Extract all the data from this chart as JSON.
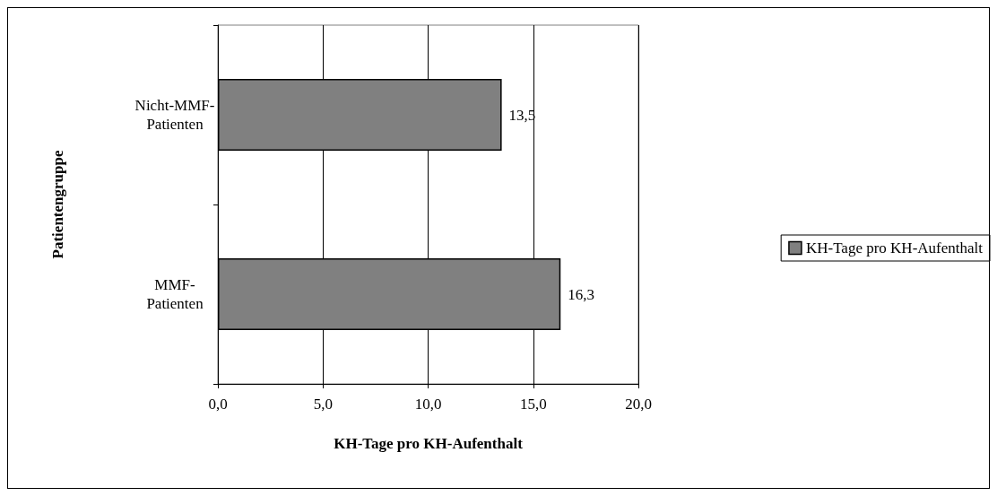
{
  "chart_data": {
    "type": "bar",
    "orientation": "horizontal",
    "categories": [
      "Nicht-MMF-Patienten",
      "MMF-Patienten"
    ],
    "series": [
      {
        "name": "KH-Tage pro KH-Aufenthalt",
        "color": "#808080",
        "values": [
          13.5,
          16.3
        ],
        "value_labels": [
          "13,5",
          "16,3"
        ]
      }
    ],
    "xlabel": "KH-Tage pro KH-Aufenthalt",
    "ylabel": "Patientengruppe",
    "xlim": [
      0,
      20
    ],
    "xticks": [
      {
        "value": 0,
        "label": "0,0"
      },
      {
        "value": 5,
        "label": "5,0"
      },
      {
        "value": 10,
        "label": "10,0"
      },
      {
        "value": 15,
        "label": "15,0"
      },
      {
        "value": 20,
        "label": "20,0"
      }
    ],
    "grid": "x",
    "legend": "right"
  }
}
